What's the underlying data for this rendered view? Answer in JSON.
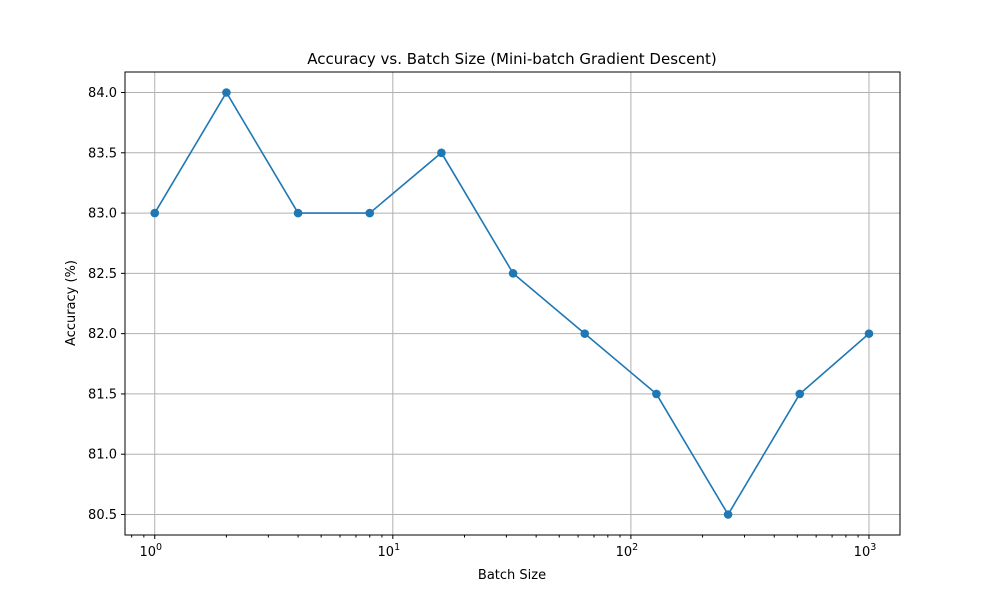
{
  "chart_data": {
    "type": "line",
    "title": "Accuracy vs. Batch Size (Mini-batch Gradient Descent)",
    "xlabel": "Batch Size",
    "ylabel": "Accuracy (%)",
    "xscale": "log",
    "xlim": [
      0.75,
      1350
    ],
    "ylim": [
      80.33,
      84.17
    ],
    "grid": true,
    "x": [
      1,
      2,
      4,
      8,
      16,
      32,
      64,
      128,
      256,
      512,
      1000
    ],
    "series": [
      {
        "values": [
          83.0,
          84.0,
          83.0,
          83.0,
          83.5,
          82.5,
          82.0,
          81.5,
          80.5,
          81.5,
          82.0
        ],
        "color": "#1f77b4",
        "marker": "circle"
      }
    ],
    "xticks": [
      {
        "value": 1,
        "base": "10",
        "exp": "0"
      },
      {
        "value": 10,
        "base": "10",
        "exp": "1"
      },
      {
        "value": 100,
        "base": "10",
        "exp": "2"
      },
      {
        "value": 1000,
        "base": "10",
        "exp": "3"
      }
    ],
    "yticks": [
      "80.5",
      "81.0",
      "81.5",
      "82.0",
      "82.5",
      "83.0",
      "83.5",
      "84.0"
    ]
  }
}
